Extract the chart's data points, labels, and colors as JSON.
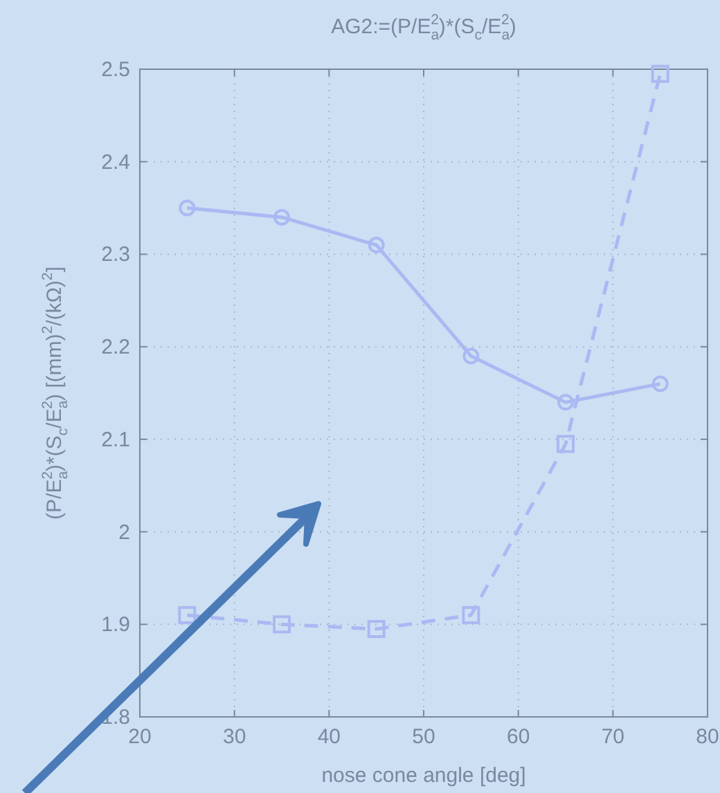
{
  "chart_data": {
    "type": "line",
    "title": "AG2:=(P/E$_{a}$$^{2}$)*(S$_{c}$/E$_{a}$$^{2}$)",
    "xlabel": "nose cone angle [deg]",
    "ylabel": "(P/E$_{a}$$^{2}$)*(S$_{c}$/E$_{a}$$^{2}$) [(mm)$^{2}$/(kΩ)$^{2}$]",
    "x": [
      25,
      35,
      45,
      55,
      65,
      75
    ],
    "series": [
      {
        "color": "#a9b9f2",
        "values": [
          2.35,
          2.34,
          2.31,
          2.19,
          2.14,
          2.16
        ],
        "marker": "circle",
        "line_style": "solid"
      },
      {
        "color": "#a9b9f2",
        "values": [
          1.91,
          1.9,
          1.895,
          1.91,
          2.095,
          2.495
        ],
        "marker": "square",
        "line_style": "dashed"
      }
    ],
    "xlim": [
      20,
      80
    ],
    "xticks": [
      20,
      30,
      40,
      50,
      60,
      70,
      80
    ],
    "ylim": [
      1.8,
      2.5
    ],
    "yticks": [
      1.8,
      1.9,
      2,
      2.1,
      2.2,
      2.3,
      2.4,
      2.5
    ],
    "grid": true
  }
}
